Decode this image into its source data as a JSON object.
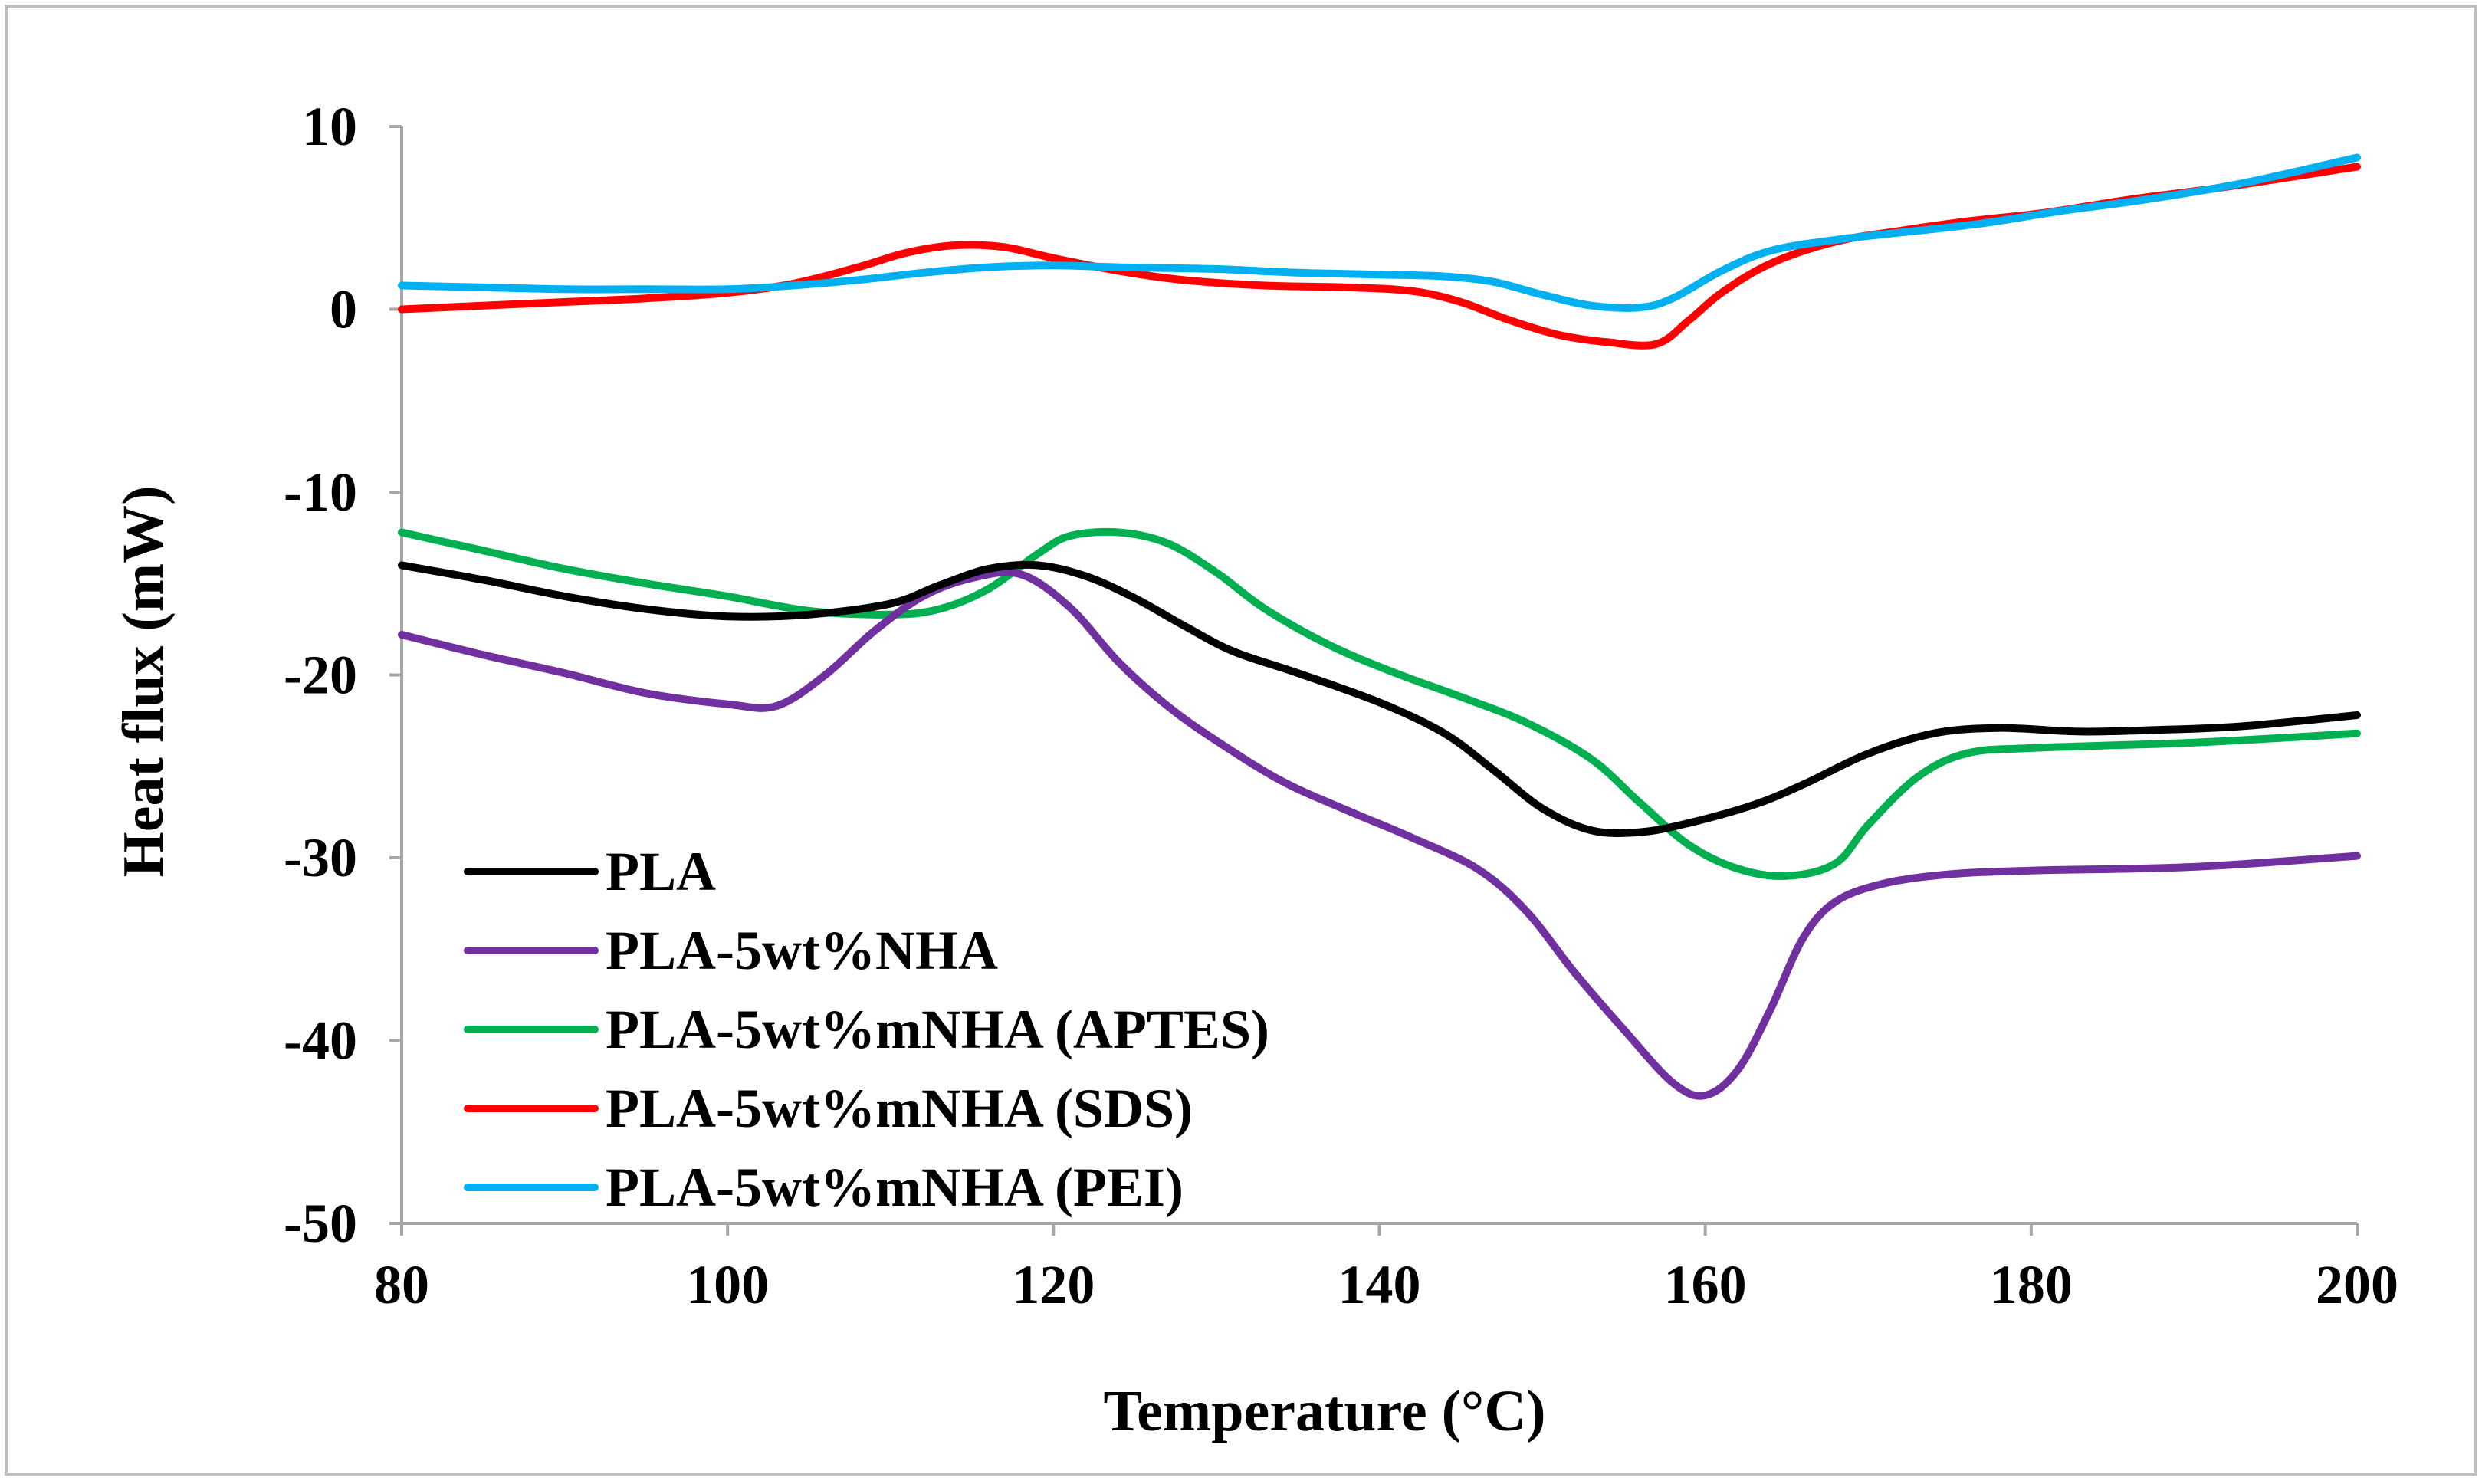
{
  "chart_data": {
    "type": "line",
    "xlabel": "Temperature (°C)",
    "ylabel": "Heat flux (mW)",
    "xlim": [
      80,
      200
    ],
    "ylim": [
      -50,
      10
    ],
    "xticks": [
      80,
      100,
      120,
      140,
      160,
      180,
      200
    ],
    "yticks": [
      10,
      0,
      -10,
      -20,
      -30,
      -40,
      -50
    ],
    "xtick_labels": [
      "80",
      "100",
      "120",
      "140",
      "160",
      "180",
      "200"
    ],
    "ytick_labels": [
      "10",
      "0",
      "-10",
      "-20",
      "-30",
      "-40",
      "-50"
    ],
    "grid": false,
    "legend_position": "bottom-left",
    "series": [
      {
        "name": "PLA",
        "color": "#000000",
        "points": [
          [
            80,
            -14.0
          ],
          [
            85,
            -14.8
          ],
          [
            90,
            -15.7
          ],
          [
            95,
            -16.4
          ],
          [
            100,
            -16.8
          ],
          [
            105,
            -16.7
          ],
          [
            110,
            -16.1
          ],
          [
            113,
            -15.1
          ],
          [
            116,
            -14.2
          ],
          [
            119,
            -14.0
          ],
          [
            122,
            -14.6
          ],
          [
            125,
            -15.8
          ],
          [
            128,
            -17.3
          ],
          [
            131,
            -18.7
          ],
          [
            135,
            -19.9
          ],
          [
            140,
            -21.5
          ],
          [
            144,
            -23.2
          ],
          [
            147,
            -25.2
          ],
          [
            150,
            -27.3
          ],
          [
            153,
            -28.5
          ],
          [
            156,
            -28.6
          ],
          [
            159,
            -28.1
          ],
          [
            163,
            -27.1
          ],
          [
            166,
            -26.0
          ],
          [
            170,
            -24.3
          ],
          [
            174,
            -23.2
          ],
          [
            178,
            -22.9
          ],
          [
            183,
            -23.1
          ],
          [
            188,
            -23.0
          ],
          [
            193,
            -22.8
          ],
          [
            200,
            -22.2
          ]
        ]
      },
      {
        "name": "PLA-5wt%NHA",
        "color": "#7030A0",
        "points": [
          [
            80,
            -17.8
          ],
          [
            85,
            -18.9
          ],
          [
            90,
            -19.9
          ],
          [
            95,
            -21.0
          ],
          [
            100,
            -21.6
          ],
          [
            103,
            -21.7
          ],
          [
            106,
            -20.0
          ],
          [
            109,
            -17.6
          ],
          [
            112,
            -15.7
          ],
          [
            115,
            -14.7
          ],
          [
            118,
            -14.5
          ],
          [
            121,
            -16.3
          ],
          [
            124,
            -19.3
          ],
          [
            127,
            -21.7
          ],
          [
            130,
            -23.6
          ],
          [
            134,
            -25.8
          ],
          [
            138,
            -27.4
          ],
          [
            142,
            -28.9
          ],
          [
            146,
            -30.6
          ],
          [
            149,
            -32.9
          ],
          [
            152,
            -36.3
          ],
          [
            155,
            -39.4
          ],
          [
            158,
            -42.3
          ],
          [
            160,
            -43.0
          ],
          [
            162,
            -41.6
          ],
          [
            164,
            -38.3
          ],
          [
            166,
            -34.4
          ],
          [
            168,
            -32.4
          ],
          [
            171,
            -31.4
          ],
          [
            175,
            -30.9
          ],
          [
            180,
            -30.7
          ],
          [
            190,
            -30.5
          ],
          [
            200,
            -29.9
          ]
        ]
      },
      {
        "name": "PLA-5wt%mNHA (APTES)",
        "color": "#00B050",
        "points": [
          [
            80,
            -12.2
          ],
          [
            85,
            -13.2
          ],
          [
            90,
            -14.2
          ],
          [
            95,
            -15.0
          ],
          [
            100,
            -15.7
          ],
          [
            105,
            -16.5
          ],
          [
            110,
            -16.7
          ],
          [
            113,
            -16.4
          ],
          [
            116,
            -15.3
          ],
          [
            119,
            -13.4
          ],
          [
            121,
            -12.4
          ],
          [
            124,
            -12.2
          ],
          [
            127,
            -12.8
          ],
          [
            130,
            -14.4
          ],
          [
            133,
            -16.4
          ],
          [
            137,
            -18.4
          ],
          [
            141,
            -19.9
          ],
          [
            145,
            -21.2
          ],
          [
            149,
            -22.6
          ],
          [
            153,
            -24.6
          ],
          [
            156,
            -27.0
          ],
          [
            159,
            -29.3
          ],
          [
            162,
            -30.6
          ],
          [
            165,
            -31.0
          ],
          [
            168,
            -30.3
          ],
          [
            170,
            -28.2
          ],
          [
            173,
            -25.6
          ],
          [
            176,
            -24.3
          ],
          [
            180,
            -24.0
          ],
          [
            190,
            -23.7
          ],
          [
            200,
            -23.2
          ]
        ]
      },
      {
        "name": "PLA-5wt%mNHA (SDS)",
        "color": "#FF0000",
        "points": [
          [
            80,
            0.0
          ],
          [
            85,
            0.2
          ],
          [
            90,
            0.4
          ],
          [
            95,
            0.6
          ],
          [
            100,
            0.9
          ],
          [
            104,
            1.4
          ],
          [
            108,
            2.3
          ],
          [
            111,
            3.1
          ],
          [
            114,
            3.5
          ],
          [
            117,
            3.4
          ],
          [
            120,
            2.8
          ],
          [
            124,
            2.1
          ],
          [
            128,
            1.6
          ],
          [
            133,
            1.3
          ],
          [
            138,
            1.2
          ],
          [
            142,
            1.0
          ],
          [
            145,
            0.4
          ],
          [
            148,
            -0.6
          ],
          [
            151,
            -1.4
          ],
          [
            154,
            -1.8
          ],
          [
            157,
            -1.9
          ],
          [
            159,
            -0.6
          ],
          [
            161,
            0.9
          ],
          [
            164,
            2.5
          ],
          [
            168,
            3.7
          ],
          [
            172,
            4.3
          ],
          [
            176,
            4.8
          ],
          [
            181,
            5.3
          ],
          [
            186,
            6.0
          ],
          [
            192,
            6.7
          ],
          [
            200,
            7.8
          ]
        ]
      },
      {
        "name": "PLA-5wt%mNHA (PEI)",
        "color": "#00B0F0",
        "points": [
          [
            80,
            1.3
          ],
          [
            85,
            1.2
          ],
          [
            90,
            1.1
          ],
          [
            95,
            1.1
          ],
          [
            100,
            1.1
          ],
          [
            104,
            1.3
          ],
          [
            108,
            1.6
          ],
          [
            112,
            2.0
          ],
          [
            116,
            2.3
          ],
          [
            120,
            2.4
          ],
          [
            124,
            2.3
          ],
          [
            130,
            2.2
          ],
          [
            135,
            2.0
          ],
          [
            140,
            1.9
          ],
          [
            144,
            1.8
          ],
          [
            147,
            1.5
          ],
          [
            150,
            0.8
          ],
          [
            153,
            0.2
          ],
          [
            156,
            0.1
          ],
          [
            158,
            0.6
          ],
          [
            161,
            2.1
          ],
          [
            164,
            3.2
          ],
          [
            168,
            3.8
          ],
          [
            172,
            4.2
          ],
          [
            177,
            4.7
          ],
          [
            182,
            5.4
          ],
          [
            187,
            6.0
          ],
          [
            193,
            6.9
          ],
          [
            200,
            8.3
          ]
        ]
      }
    ]
  }
}
